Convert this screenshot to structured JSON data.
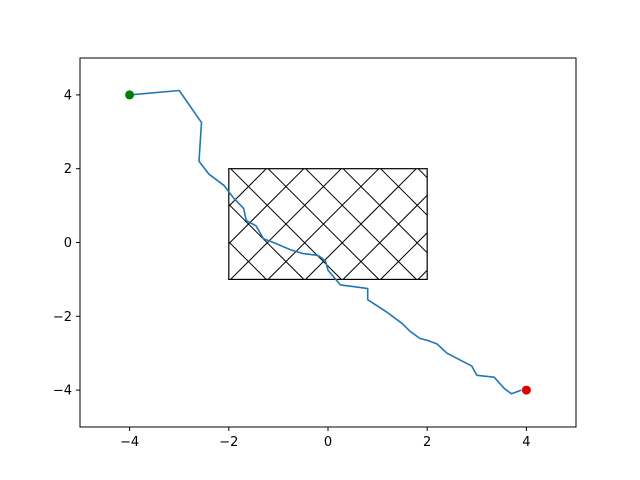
{
  "chart_data": {
    "type": "line",
    "title": "",
    "xlabel": "",
    "ylabel": "",
    "xlim": [
      -5,
      5
    ],
    "ylim": [
      -5,
      5
    ],
    "grid": false,
    "x_ticks": [
      -4,
      -2,
      0,
      2,
      4
    ],
    "y_ticks": [
      -4,
      -2,
      0,
      2,
      4
    ],
    "x_tick_labels": [
      "−4",
      "−2",
      "0",
      "2",
      "4"
    ],
    "y_tick_labels": [
      "−4",
      "−2",
      "0",
      "2",
      "4"
    ],
    "series": [
      {
        "color": "#1f77b4",
        "points": [
          [
            -4.0,
            4.0
          ],
          [
            -3.0,
            4.12
          ],
          [
            -2.55,
            3.25
          ],
          [
            -2.6,
            2.2
          ],
          [
            -2.4,
            1.85
          ],
          [
            -2.1,
            1.55
          ],
          [
            -1.9,
            1.2
          ],
          [
            -1.7,
            0.92
          ],
          [
            -1.65,
            0.6
          ],
          [
            -1.45,
            0.45
          ],
          [
            -1.3,
            0.1
          ],
          [
            -1.1,
            0.0
          ],
          [
            -0.75,
            -0.2
          ],
          [
            -0.5,
            -0.3
          ],
          [
            -0.2,
            -0.35
          ],
          [
            -0.05,
            -0.5
          ],
          [
            0.0,
            -0.75
          ],
          [
            0.25,
            -1.15
          ],
          [
            0.55,
            -1.2
          ],
          [
            0.8,
            -1.25
          ],
          [
            0.8,
            -1.55
          ],
          [
            1.2,
            -1.9
          ],
          [
            1.5,
            -2.2
          ],
          [
            1.65,
            -2.4
          ],
          [
            1.85,
            -2.6
          ],
          [
            2.0,
            -2.65
          ],
          [
            2.2,
            -2.75
          ],
          [
            2.4,
            -3.0
          ],
          [
            2.9,
            -3.35
          ],
          [
            3.0,
            -3.6
          ],
          [
            3.35,
            -3.65
          ],
          [
            3.55,
            -3.95
          ],
          [
            3.7,
            -4.1
          ],
          [
            3.9,
            -4.0
          ]
        ]
      }
    ],
    "start_point": {
      "x": -4,
      "y": 4,
      "color": "#008000"
    },
    "end_point": {
      "x": 4,
      "y": -4,
      "color": "#e00000"
    },
    "obstacle": {
      "x": [
        -2,
        2
      ],
      "y": [
        -1,
        2
      ],
      "hatch": "crosshatch",
      "edge_color": "#000000"
    }
  }
}
